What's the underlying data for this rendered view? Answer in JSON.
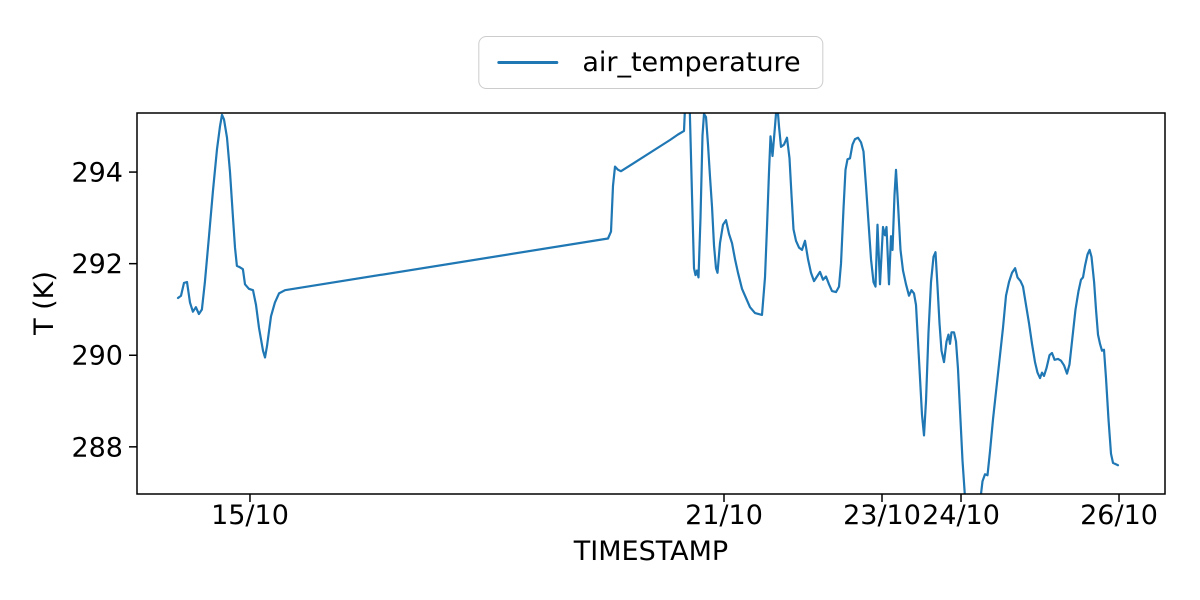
{
  "figure": {
    "background": "#ffffff"
  },
  "legend": {
    "label": "air_temperature",
    "line_color": "#1f77b4",
    "border_color": "#cccccc",
    "position": "top-center-above-axes"
  },
  "colors": {
    "series_line": "#1f77b4",
    "axis": "#000000",
    "background": "#ffffff"
  },
  "chart_data": {
    "type": "line",
    "title": "",
    "xlabel": "TIMESTAMP",
    "ylabel": "T (K)",
    "grid": false,
    "legend_position": "upper center outside plot",
    "x_axis": {
      "unit": "days since 15/10 00:00",
      "min": -1.43,
      "max": 11.582,
      "ticks": [
        {
          "t": 0,
          "label": "15/10"
        },
        {
          "t": 6,
          "label": "21/10"
        },
        {
          "t": 8,
          "label": "23/10"
        },
        {
          "t": 9,
          "label": "24/10"
        },
        {
          "t": 11,
          "label": "26/10"
        }
      ]
    },
    "y_axis": {
      "min": 286.97,
      "max": 295.29,
      "ticks": [
        {
          "v": 288,
          "label": "288"
        },
        {
          "v": 290,
          "label": "290"
        },
        {
          "v": 292,
          "label": "292"
        },
        {
          "v": 294,
          "label": "294"
        }
      ]
    },
    "series": [
      {
        "name": "air_temperature",
        "color": "#1f77b4",
        "line_width": 2.2,
        "points": [
          [
            -0.911,
            291.25
          ],
          [
            -0.873,
            291.3
          ],
          [
            -0.835,
            291.58
          ],
          [
            -0.797,
            291.6
          ],
          [
            -0.759,
            291.15
          ],
          [
            -0.722,
            290.95
          ],
          [
            -0.684,
            291.05
          ],
          [
            -0.646,
            290.9
          ],
          [
            -0.608,
            291.0
          ],
          [
            -0.57,
            291.6
          ],
          [
            -0.519,
            292.6
          ],
          [
            -0.468,
            293.6
          ],
          [
            -0.418,
            294.5
          ],
          [
            -0.38,
            295.0
          ],
          [
            -0.354,
            295.25
          ],
          [
            -0.329,
            295.15
          ],
          [
            -0.291,
            294.75
          ],
          [
            -0.253,
            294.0
          ],
          [
            -0.215,
            293.0
          ],
          [
            -0.19,
            292.35
          ],
          [
            -0.165,
            291.95
          ],
          [
            -0.127,
            291.92
          ],
          [
            -0.089,
            291.88
          ],
          [
            -0.063,
            291.55
          ],
          [
            -0.013,
            291.45
          ],
          [
            0.038,
            291.42
          ],
          [
            0.076,
            291.1
          ],
          [
            0.114,
            290.6
          ],
          [
            0.165,
            290.1
          ],
          [
            0.19,
            289.95
          ],
          [
            0.215,
            290.2
          ],
          [
            0.266,
            290.85
          ],
          [
            0.316,
            291.15
          ],
          [
            0.367,
            291.35
          ],
          [
            0.443,
            291.42
          ],
          [
            4.532,
            292.55
          ],
          [
            4.57,
            292.7
          ],
          [
            4.595,
            293.7
          ],
          [
            4.62,
            294.12
          ],
          [
            4.658,
            294.05
          ],
          [
            4.696,
            294.02
          ],
          [
            5.316,
            294.7
          ],
          [
            5.418,
            294.82
          ],
          [
            5.494,
            294.9
          ],
          [
            5.519,
            295.9
          ],
          [
            5.557,
            296.0
          ],
          [
            5.595,
            293.5
          ],
          [
            5.62,
            291.9
          ],
          [
            5.639,
            291.75
          ],
          [
            5.658,
            291.85
          ],
          [
            5.677,
            291.7
          ],
          [
            5.703,
            293.0
          ],
          [
            5.728,
            294.8
          ],
          [
            5.747,
            295.27
          ],
          [
            5.772,
            295.2
          ],
          [
            5.797,
            294.6
          ],
          [
            5.823,
            293.9
          ],
          [
            5.848,
            293.25
          ],
          [
            5.873,
            292.4
          ],
          [
            5.899,
            291.9
          ],
          [
            5.918,
            291.8
          ],
          [
            5.949,
            292.45
          ],
          [
            5.987,
            292.85
          ],
          [
            6.025,
            292.95
          ],
          [
            6.063,
            292.65
          ],
          [
            6.101,
            292.45
          ],
          [
            6.139,
            292.1
          ],
          [
            6.177,
            291.8
          ],
          [
            6.228,
            291.45
          ],
          [
            6.278,
            291.25
          ],
          [
            6.329,
            291.05
          ],
          [
            6.392,
            290.92
          ],
          [
            6.481,
            290.88
          ],
          [
            6.519,
            291.7
          ],
          [
            6.544,
            292.8
          ],
          [
            6.57,
            294.0
          ],
          [
            6.589,
            294.78
          ],
          [
            6.614,
            294.35
          ],
          [
            6.646,
            295.0
          ],
          [
            6.671,
            295.55
          ],
          [
            6.696,
            295.0
          ],
          [
            6.722,
            294.55
          ],
          [
            6.759,
            294.6
          ],
          [
            6.797,
            294.75
          ],
          [
            6.829,
            294.3
          ],
          [
            6.854,
            293.5
          ],
          [
            6.88,
            292.75
          ],
          [
            6.911,
            292.5
          ],
          [
            6.949,
            292.35
          ],
          [
            6.987,
            292.3
          ],
          [
            7.025,
            292.5
          ],
          [
            7.063,
            292.1
          ],
          [
            7.101,
            291.8
          ],
          [
            7.139,
            291.62
          ],
          [
            7.177,
            291.72
          ],
          [
            7.215,
            291.82
          ],
          [
            7.253,
            291.65
          ],
          [
            7.291,
            291.72
          ],
          [
            7.329,
            291.55
          ],
          [
            7.367,
            291.4
          ],
          [
            7.418,
            291.38
          ],
          [
            7.456,
            291.5
          ],
          [
            7.481,
            292.0
          ],
          [
            7.513,
            293.2
          ],
          [
            7.538,
            294.05
          ],
          [
            7.563,
            294.28
          ],
          [
            7.595,
            294.3
          ],
          [
            7.627,
            294.6
          ],
          [
            7.658,
            294.72
          ],
          [
            7.696,
            294.75
          ],
          [
            7.734,
            294.65
          ],
          [
            7.766,
            294.45
          ],
          [
            7.797,
            293.7
          ],
          [
            7.829,
            292.9
          ],
          [
            7.861,
            292.1
          ],
          [
            7.892,
            291.6
          ],
          [
            7.918,
            291.5
          ],
          [
            7.943,
            292.85
          ],
          [
            7.975,
            291.55
          ],
          [
            8.013,
            292.8
          ],
          [
            8.038,
            292.62
          ],
          [
            8.057,
            292.8
          ],
          [
            8.089,
            291.55
          ],
          [
            8.114,
            292.6
          ],
          [
            8.133,
            292.3
          ],
          [
            8.158,
            293.5
          ],
          [
            8.177,
            294.05
          ],
          [
            8.203,
            293.3
          ],
          [
            8.234,
            292.3
          ],
          [
            8.266,
            291.85
          ],
          [
            8.304,
            291.55
          ],
          [
            8.342,
            291.3
          ],
          [
            8.373,
            291.42
          ],
          [
            8.405,
            291.35
          ],
          [
            8.43,
            291.1
          ],
          [
            8.456,
            290.3
          ],
          [
            8.481,
            289.5
          ],
          [
            8.506,
            288.7
          ],
          [
            8.532,
            288.25
          ],
          [
            8.557,
            289.0
          ],
          [
            8.589,
            290.5
          ],
          [
            8.62,
            291.6
          ],
          [
            8.652,
            292.15
          ],
          [
            8.677,
            292.25
          ],
          [
            8.703,
            291.5
          ],
          [
            8.728,
            290.7
          ],
          [
            8.753,
            290.1
          ],
          [
            8.785,
            289.85
          ],
          [
            8.816,
            290.3
          ],
          [
            8.842,
            290.45
          ],
          [
            8.861,
            290.25
          ],
          [
            8.88,
            290.5
          ],
          [
            8.911,
            290.5
          ],
          [
            8.937,
            290.3
          ],
          [
            8.962,
            289.7
          ],
          [
            8.987,
            288.8
          ],
          [
            9.019,
            287.7
          ],
          [
            9.051,
            286.9
          ],
          [
            9.114,
            286.4
          ],
          [
            9.19,
            286.3
          ],
          [
            9.241,
            286.8
          ],
          [
            9.272,
            287.25
          ],
          [
            9.304,
            287.4
          ],
          [
            9.335,
            287.38
          ],
          [
            9.367,
            287.9
          ],
          [
            9.405,
            288.6
          ],
          [
            9.449,
            289.3
          ],
          [
            9.494,
            290.0
          ],
          [
            9.532,
            290.6
          ],
          [
            9.57,
            291.3
          ],
          [
            9.608,
            291.6
          ],
          [
            9.646,
            291.8
          ],
          [
            9.684,
            291.9
          ],
          [
            9.715,
            291.7
          ],
          [
            9.753,
            291.62
          ],
          [
            9.785,
            291.5
          ],
          [
            9.823,
            291.1
          ],
          [
            9.861,
            290.7
          ],
          [
            9.899,
            290.25
          ],
          [
            9.937,
            289.85
          ],
          [
            9.968,
            289.62
          ],
          [
            10.0,
            289.5
          ],
          [
            10.025,
            289.62
          ],
          [
            10.051,
            289.55
          ],
          [
            10.082,
            289.72
          ],
          [
            10.12,
            290.0
          ],
          [
            10.152,
            290.05
          ],
          [
            10.184,
            289.9
          ],
          [
            10.228,
            289.92
          ],
          [
            10.266,
            289.88
          ],
          [
            10.304,
            289.78
          ],
          [
            10.342,
            289.6
          ],
          [
            10.373,
            289.8
          ],
          [
            10.411,
            290.4
          ],
          [
            10.449,
            291.0
          ],
          [
            10.487,
            291.4
          ],
          [
            10.519,
            291.65
          ],
          [
            10.544,
            291.7
          ],
          [
            10.57,
            291.95
          ],
          [
            10.601,
            292.2
          ],
          [
            10.627,
            292.3
          ],
          [
            10.652,
            292.15
          ],
          [
            10.684,
            291.6
          ],
          [
            10.709,
            291.0
          ],
          [
            10.734,
            290.45
          ],
          [
            10.759,
            290.25
          ],
          [
            10.785,
            290.1
          ],
          [
            10.81,
            290.12
          ],
          [
            10.835,
            289.5
          ],
          [
            10.867,
            288.6
          ],
          [
            10.899,
            287.85
          ],
          [
            10.924,
            287.65
          ],
          [
            10.987,
            287.6
          ]
        ]
      }
    ]
  }
}
